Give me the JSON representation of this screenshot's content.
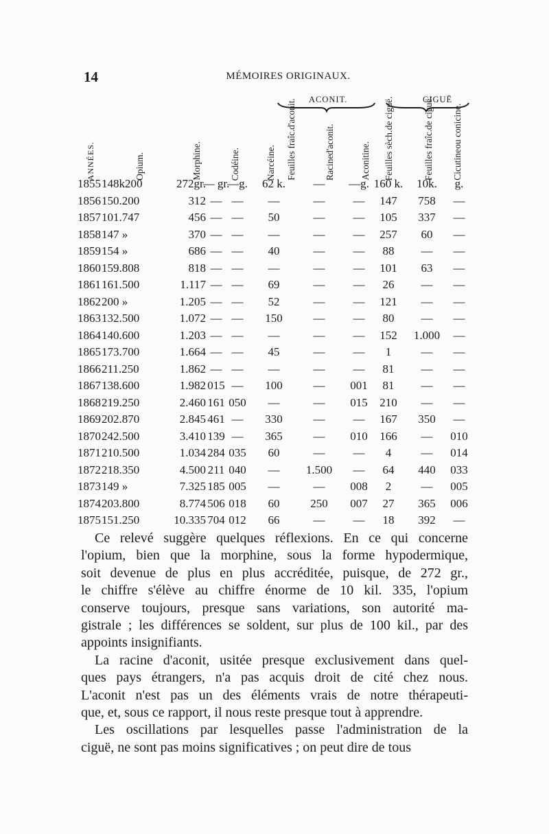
{
  "header": {
    "page_number": "14",
    "running_title": "MÉMOIRES ORIGINAUX."
  },
  "table": {
    "groups": {
      "aconit": "ACONIT.",
      "cigue": "CIGUË"
    },
    "columns": [
      [
        "ANNÉES."
      ],
      [
        "Opium."
      ],
      [
        "Morphine."
      ],
      [
        "Codéine."
      ],
      [
        "Narcéine."
      ],
      [
        "Feuilles fraîc.",
        "d'aconit."
      ],
      [
        "Racine",
        "d'aconit."
      ],
      [
        "Aconitine."
      ],
      [
        "Feuilles sèch.",
        "de ciguë."
      ],
      [
        "Feuilles fraîc.",
        "de ciguë."
      ],
      [
        "Cicutine",
        "ou conicine."
      ]
    ],
    "rows": [
      [
        "1855",
        "148k200",
        "272gr.",
        "— gr.",
        "—g.",
        "62 k.",
        "—",
        "—g.",
        "160 k.",
        "10k.",
        "g."
      ],
      [
        "1856",
        "150.200",
        "312",
        "—",
        "—",
        "—",
        "—",
        "—",
        "147",
        "758",
        "—"
      ],
      [
        "1857",
        "101.747",
        "456",
        "—",
        "—",
        "50",
        "—",
        "—",
        "105",
        "337",
        "—"
      ],
      [
        "1858",
        "147 »",
        "370",
        "—",
        "—",
        "—",
        "—",
        "—",
        "257",
        "60",
        "—"
      ],
      [
        "1859",
        "154 »",
        "686",
        "—",
        "—",
        "40",
        "—",
        "—",
        "88",
        "—",
        "—"
      ],
      [
        "1860",
        "159.808",
        "818",
        "—",
        "—",
        "—",
        "—",
        "—",
        "101",
        "63",
        "—"
      ],
      [
        "1861",
        "161.500",
        "1.117",
        "—",
        "—",
        "69",
        "—",
        "—",
        "26",
        "—",
        "—"
      ],
      [
        "1862",
        "200 »",
        "1.205",
        "—",
        "—",
        "52",
        "—",
        "—",
        "121",
        "—",
        "—"
      ],
      [
        "1863",
        "132.500",
        "1.072",
        "—",
        "—",
        "150",
        "—",
        "—",
        "80",
        "—",
        "—"
      ],
      [
        "1864",
        "140.600",
        "1.203",
        "—",
        "—",
        "—",
        "—",
        "—",
        "152",
        "1.000",
        "—"
      ],
      [
        "1865",
        "173.700",
        "1.664",
        "—",
        "—",
        "45",
        "—",
        "—",
        "1",
        "—",
        "—"
      ],
      [
        "1866",
        "211.250",
        "1.862",
        "—",
        "—",
        "—",
        "—",
        "—",
        "81",
        "—",
        "—"
      ],
      [
        "1867",
        "138.600",
        "1.982",
        "015",
        "—",
        "100",
        "—",
        "001",
        "81",
        "—",
        "—"
      ],
      [
        "1868",
        "219.250",
        "2.460",
        "161",
        "050",
        "—",
        "—",
        "015",
        "210",
        "—",
        "—"
      ],
      [
        "1869",
        "202.870",
        "2.845",
        "461",
        "—",
        "330",
        "—",
        "—",
        "167",
        "350",
        "—"
      ],
      [
        "1870",
        "242.500",
        "3.410",
        "139",
        "—",
        "365",
        "—",
        "010",
        "166",
        "—",
        "010"
      ],
      [
        "1871",
        "210.500",
        "1.034",
        "284",
        "035",
        "60",
        "—",
        "—",
        "4",
        "—",
        "014"
      ],
      [
        "1872",
        "218.350",
        "4.500",
        "211",
        "040",
        "—",
        "1.500",
        "—",
        "64",
        "440",
        "033"
      ],
      [
        "1873",
        "149 »",
        "7.325",
        "185",
        "005",
        "—",
        "—",
        "008",
        "2",
        "—",
        "005"
      ],
      [
        "1874",
        "203.800",
        "8.774",
        "506",
        "018",
        "60",
        "250",
        "007",
        "27",
        "365",
        "006"
      ],
      [
        "1875",
        "151.250",
        "10.335",
        "704",
        "012",
        "66",
        "—",
        "—",
        "18",
        "392",
        "—"
      ]
    ]
  },
  "body_lines": [
    "Ce relevé suggère quelques réflexions. En ce qui concerne",
    "l'opium, bien que la morphine, sous la forme hypodermique,",
    "soit devenue de plus en plus accréditée, puisque, de 272 gr.,",
    "le chiffre s'élève au chiffre énorme de 10 kil. 335, l'opium",
    "conserve toujours, presque sans variations, son autorité ma-",
    "gistrale ; les différences se soldent, sur plus de 100 kil., par des",
    "appoints insignifiants.",
    "La racine d'aconit, usitée presque exclusivement dans quel-",
    "ques pays étrangers, n'a pas acquis droit de cité chez nous.",
    "L'aconit n'est pas un des éléments vrais de notre thérapeuti-",
    "que, et, sous ce rapport, il nous reste presque tout à apprendre.",
    "Les oscillations par lesquelles passe l'administration de la",
    "ciguë, ne sont pas moins significatives ; on peut dire de tous"
  ]
}
